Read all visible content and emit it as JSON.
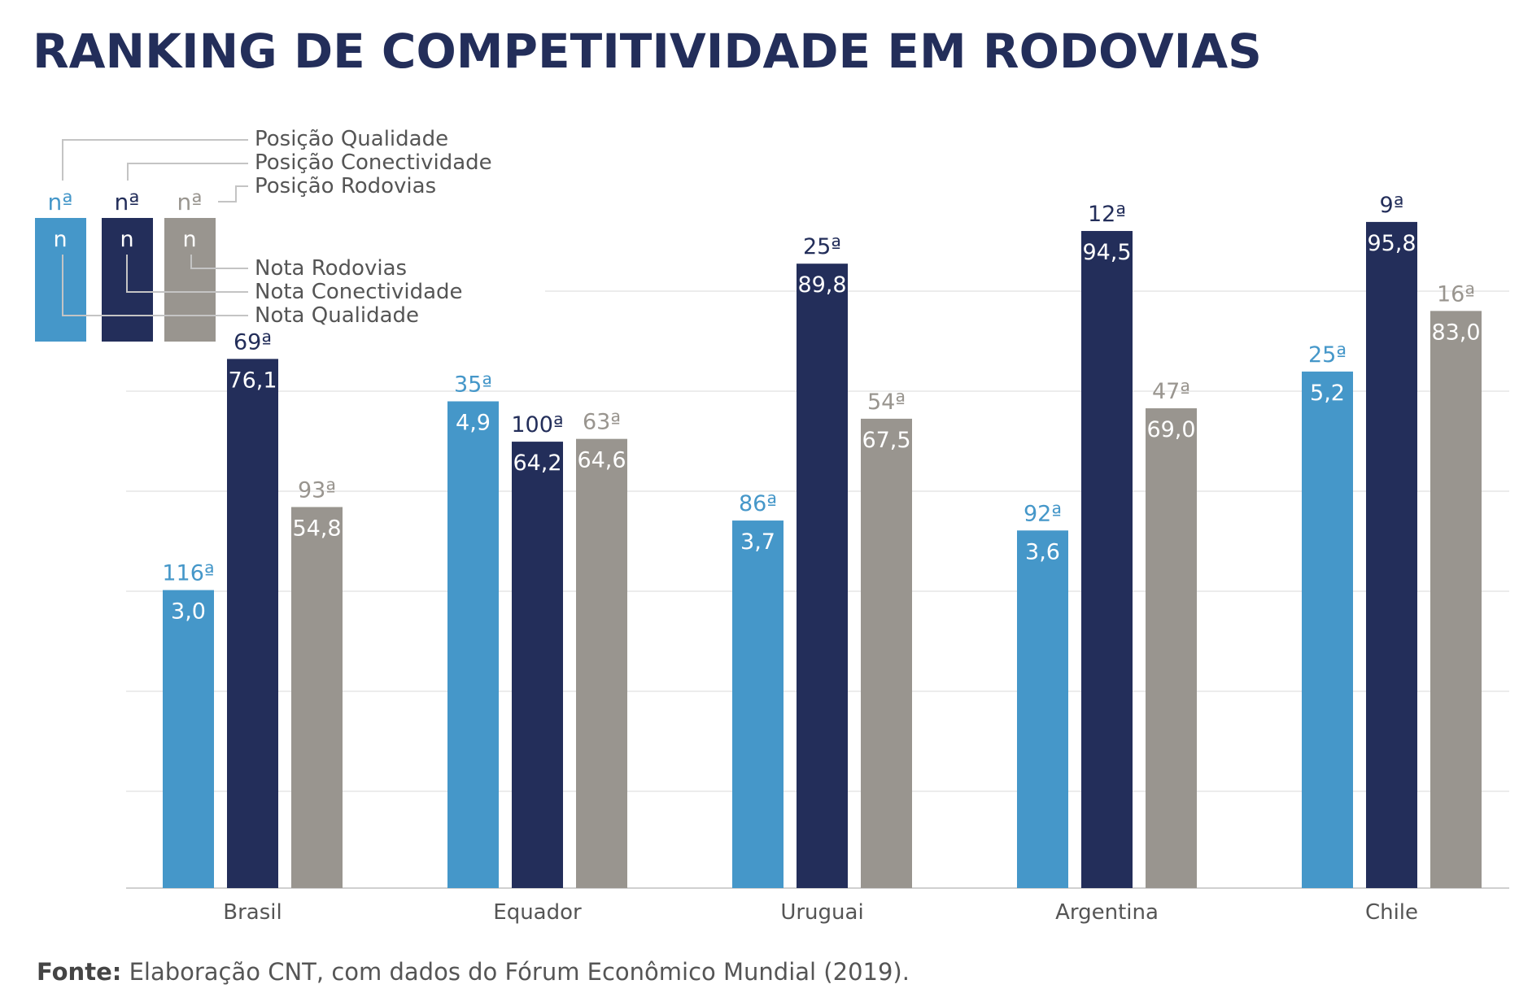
{
  "source": {
    "label": "Fonte:",
    "text": "Elaboração CNT, com dados do Fórum Econômico Mundial (2019)."
  },
  "legend": {
    "rank_symbol": "nª",
    "score_symbol": "n",
    "position_labels": [
      "Posição Qualidade",
      "Posição Conectividade",
      "Posição Rodovias"
    ],
    "score_labels": [
      "Nota Rodovias",
      "Nota Conectividade",
      "Nota Qualidade"
    ]
  },
  "chart_data": {
    "type": "bar",
    "title": "RANKING DE COMPETITIVIDADE EM RODOVIAS",
    "categories": [
      "Brasil",
      "Equador",
      "Uruguai",
      "Argentina",
      "Chile"
    ],
    "ylim": [
      0,
      100
    ],
    "grid": true,
    "series": [
      {
        "name": "Qualidade",
        "color": "#4597c9",
        "scale_max": 7,
        "values": [
          3.0,
          4.9,
          3.7,
          3.6,
          5.2
        ],
        "value_labels": [
          "3,0",
          "4,9",
          "3,7",
          "3,6",
          "5,2"
        ],
        "ranks": [
          "116ª",
          "35ª",
          "86ª",
          "92ª",
          "25ª"
        ]
      },
      {
        "name": "Conectividade",
        "color": "#232e5a",
        "scale_max": 100,
        "values": [
          76.1,
          64.2,
          89.8,
          94.5,
          95.8
        ],
        "value_labels": [
          "76,1",
          "64,2",
          "89,8",
          "94,5",
          "95,8"
        ],
        "ranks": [
          "69ª",
          "100ª",
          "25ª",
          "12ª",
          "9ª"
        ]
      },
      {
        "name": "Rodovias",
        "color": "#99958f",
        "scale_max": 100,
        "values": [
          54.8,
          64.6,
          67.5,
          69.0,
          83.0
        ],
        "value_labels": [
          "54,8",
          "64,6",
          "67,5",
          "69,0",
          "83,0"
        ],
        "ranks": [
          "93ª",
          "63ª",
          "54ª",
          "47ª",
          "16ª"
        ]
      }
    ]
  }
}
